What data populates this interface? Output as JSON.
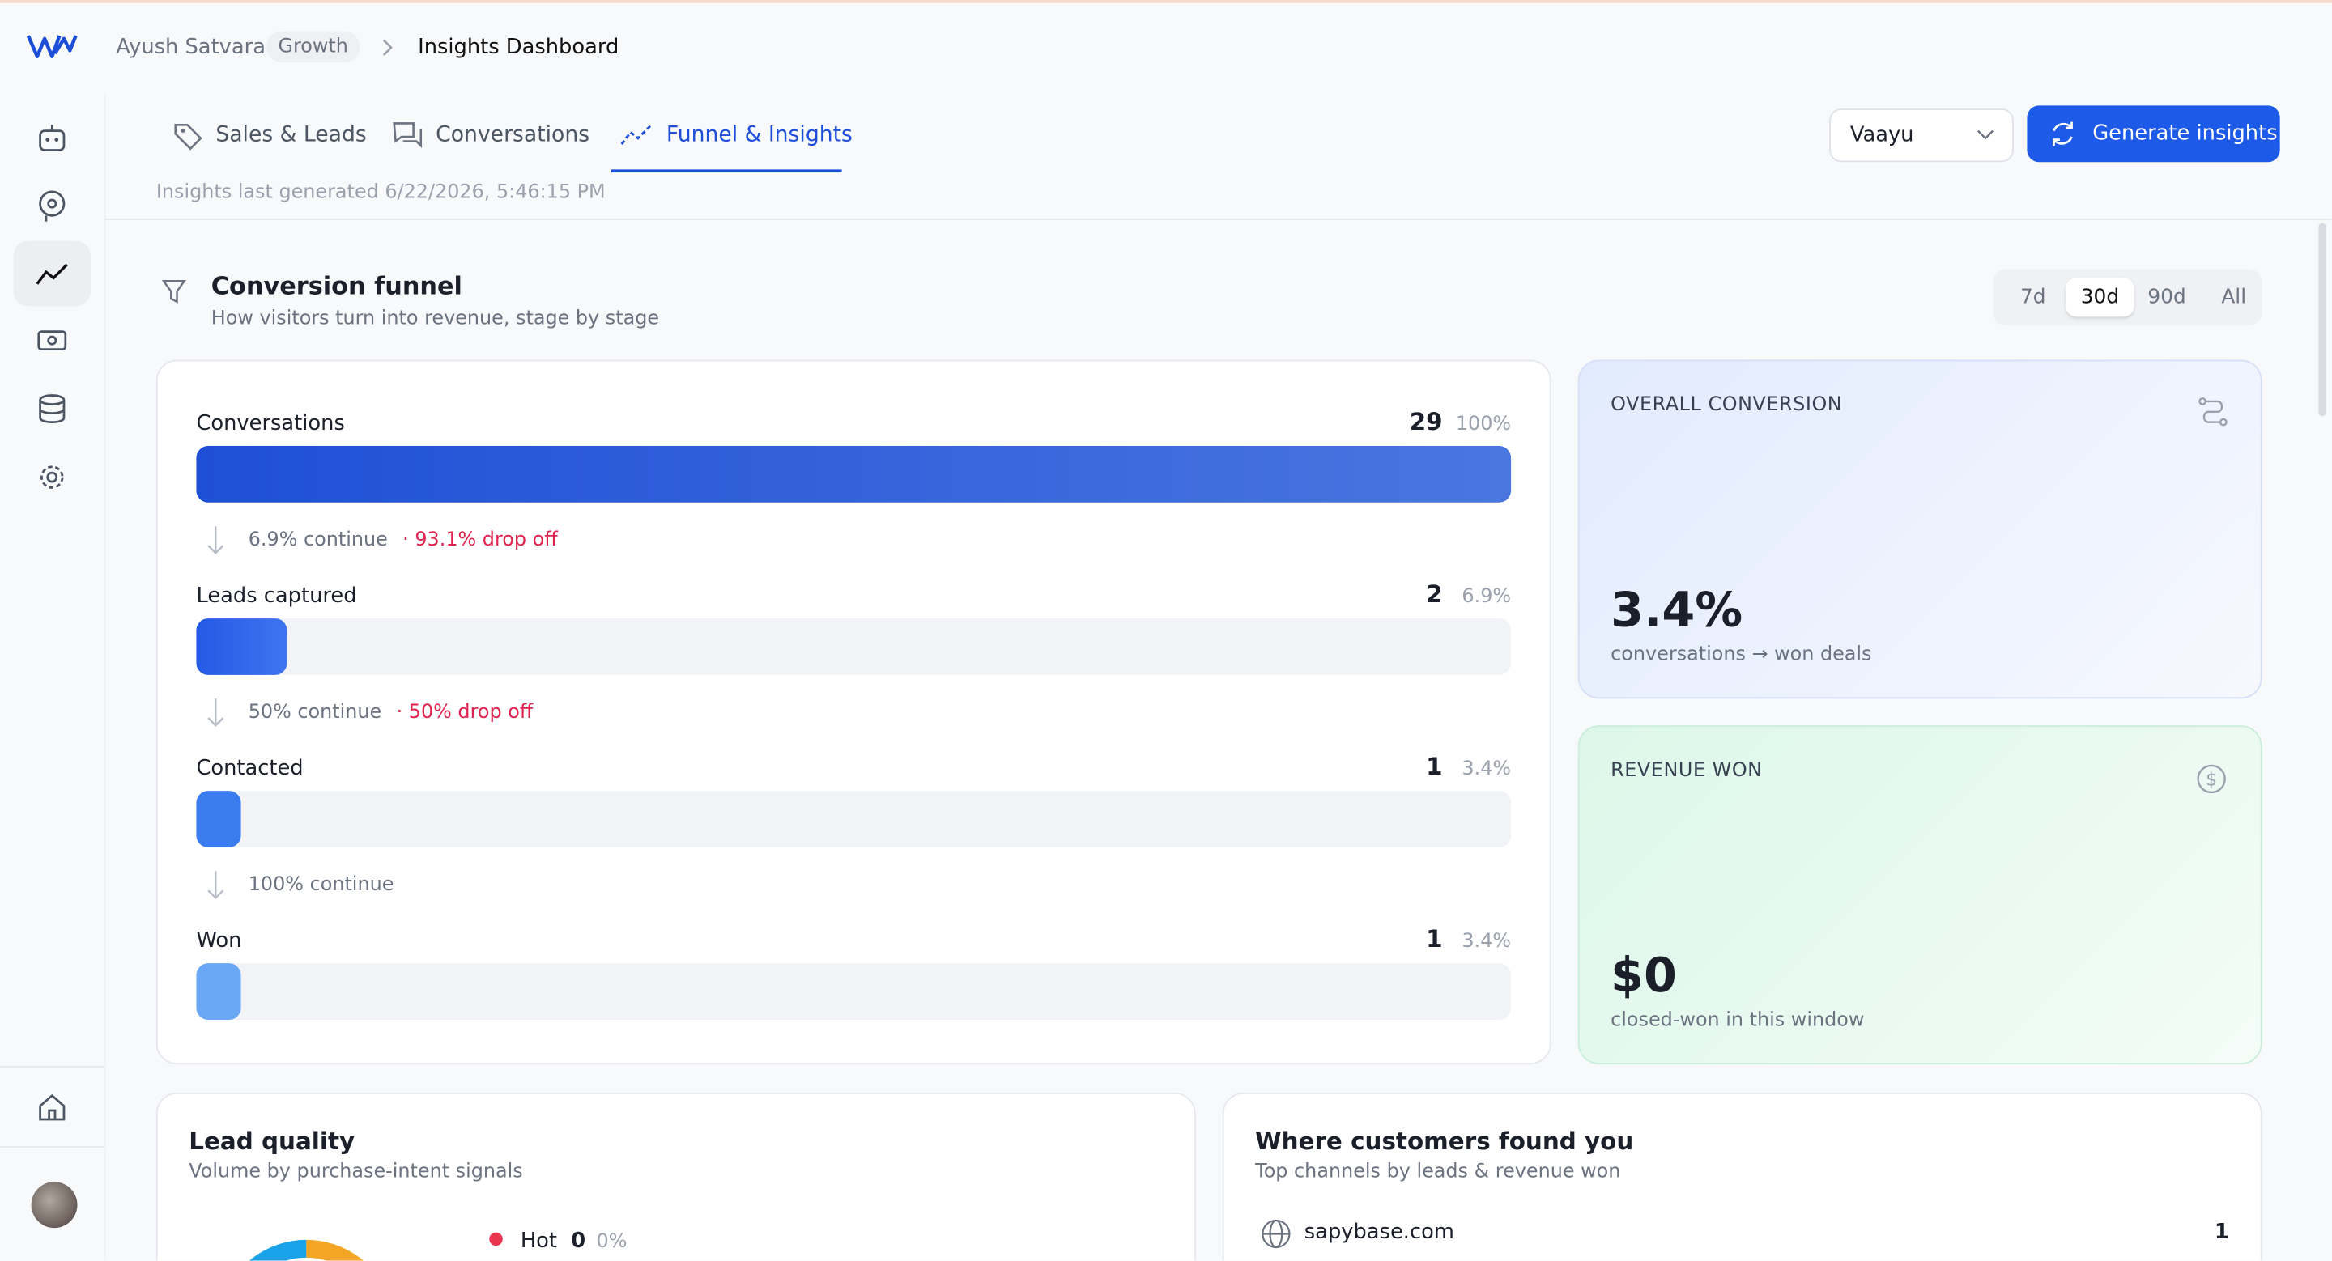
{
  "breadcrumb": {
    "user": "Ayush Satvara",
    "badge": "Growth",
    "page": "Insights Dashboard"
  },
  "tabs": [
    "Sales & Leads",
    "Conversations",
    "Funnel & Insights"
  ],
  "active_tab": 2,
  "selector": "Vaayu",
  "generate_button": "Generate insights",
  "last_generated": "Insights last generated 6/22/2026, 5:46:15 PM",
  "funnel": {
    "title": "Conversion funnel",
    "subtitle": "How visitors turn into revenue, stage by stage",
    "ranges": [
      "7d",
      "30d",
      "90d",
      "All"
    ],
    "active_range": 1,
    "stages": [
      {
        "name": "Conversations",
        "count": 29,
        "share": {
          "value": 100,
          "label": "100%"
        },
        "continue": "6.9% continue",
        "drop": "· 93.1% drop off"
      },
      {
        "name": "Leads captured",
        "count": 2,
        "share": {
          "value": 6.9,
          "label": "6.9%"
        },
        "continue": "50% continue",
        "drop": "· 50% drop off"
      },
      {
        "name": "Contacted",
        "count": 1,
        "share": {
          "value": 3.4,
          "label": "3.4%"
        },
        "continue": "100% continue"
      },
      {
        "name": "Won",
        "count": 1,
        "share": {
          "value": 3.4,
          "label": "3.4%"
        }
      }
    ]
  },
  "overall": {
    "title": "OVERALL CONVERSION",
    "value": "3.4%",
    "caption": "conversations → won deals"
  },
  "revenue": {
    "title": "REVENUE WON",
    "value": "$0",
    "caption": "closed-won in this window"
  },
  "lead_quality": {
    "title": "Lead quality",
    "subtitle": "Volume by purchase-intent signals",
    "legend": [
      {
        "name": "Hot",
        "count": 0,
        "share": "0%"
      }
    ]
  },
  "channels": {
    "title": "Where customers found you",
    "subtitle": "Top channels by leads & revenue won",
    "rows": [
      {
        "name": "sapybase.com",
        "count": 1
      }
    ]
  }
}
